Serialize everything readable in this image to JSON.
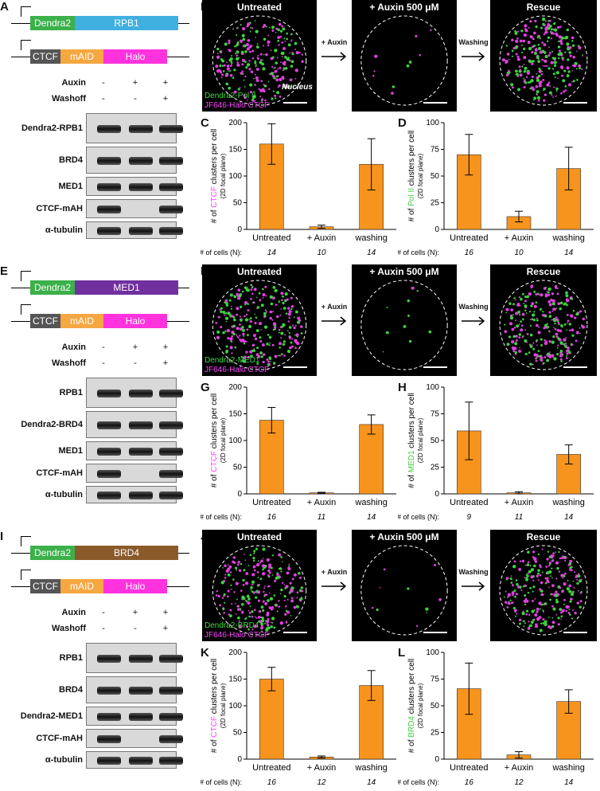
{
  "rows": [
    {
      "id": "row1",
      "labels": {
        "schematic": "A",
        "micro": "B",
        "chart1": "C",
        "chart2": "D"
      },
      "construct_top": [
        "Dendra2",
        "RPB1"
      ],
      "construct_top_colors": [
        "#3cb04a",
        "#3fb0e0"
      ],
      "construct_bottom": [
        "CTCF",
        "mAID",
        "Halo"
      ],
      "conditions": {
        "auxin_label": "Auxin",
        "washoff_label": "Washoff",
        "auxin": [
          "-",
          "+",
          "+"
        ],
        "washoff": [
          "-",
          "-",
          "+"
        ]
      },
      "blots": [
        "Dendra2-RPB1",
        "BRD4",
        "MED1",
        "CTCF-mAH",
        "α-tubulin"
      ],
      "micro_titles": [
        "Untreated",
        "+ Auxin 500 μM",
        "Rescue"
      ],
      "arrow_labels": [
        "+ Auxin",
        "Washing"
      ],
      "nucleus_label": "Nucleus",
      "legend_green": "Dendra2-Pol II",
      "legend_magenta": "JF646-Halo CTCF"
    },
    {
      "id": "row2",
      "labels": {
        "schematic": "E",
        "micro": "F",
        "chart1": "G",
        "chart2": "H"
      },
      "construct_top": [
        "Dendra2",
        "MED1"
      ],
      "construct_top_colors": [
        "#3cb04a",
        "#7030a0"
      ],
      "construct_bottom": [
        "CTCF",
        "mAID",
        "Halo"
      ],
      "conditions": {
        "auxin_label": "Auxin",
        "washoff_label": "Washoff",
        "auxin": [
          "-",
          "+",
          "+"
        ],
        "washoff": [
          "-",
          "-",
          "+"
        ]
      },
      "blots": [
        "RPB1",
        "Dendra2-BRD4",
        "MED1",
        "CTCF-mAH",
        "α-tubulin"
      ],
      "micro_titles": [
        "Untreated",
        "+ Auxin 500 μM",
        "Rescue"
      ],
      "arrow_labels": [
        "+ Auxin",
        "Washing"
      ],
      "nucleus_label": "",
      "legend_green": "Dendra2-MED1",
      "legend_magenta": "JF646-Halo CTCF"
    },
    {
      "id": "row3",
      "labels": {
        "schematic": "I",
        "micro": "J",
        "chart1": "K",
        "chart2": "L"
      },
      "construct_top": [
        "Dendra2",
        "BRD4"
      ],
      "construct_top_colors": [
        "#3cb04a",
        "#8b5a2b"
      ],
      "construct_bottom": [
        "CTCF",
        "mAID",
        "Halo"
      ],
      "conditions": {
        "auxin_label": "Auxin",
        "washoff_label": "Washoff",
        "auxin": [
          "-",
          "+",
          "+"
        ],
        "washoff": [
          "-",
          "-",
          "+"
        ]
      },
      "blots": [
        "RPB1",
        "BRD4",
        "Dendra2-MED1",
        "CTCF-mAH",
        "α-tubulin"
      ],
      "micro_titles": [
        "Untreated",
        "+ Auxin 500 μM",
        "Rescue"
      ],
      "arrow_labels": [
        "+ Auxin",
        "Washing"
      ],
      "nucleus_label": "",
      "legend_green": "Dendra2-BRD4",
      "legend_magenta": "JF646-Halo CTCF"
    }
  ],
  "colors": {
    "bar": "#f7941d",
    "ctcf": "#ff44ff",
    "green": "#44cc44",
    "ctcf_box": "#555555",
    "maid_box": "#f5a742",
    "halo_box": "#ff33dd"
  },
  "chart_data": [
    {
      "type": "bar",
      "panel": "C",
      "categories": [
        "Untreated",
        "+ Auxin",
        "washing"
      ],
      "values": [
        160,
        5,
        122
      ],
      "errors": [
        38,
        3,
        48
      ],
      "ylim": [
        0,
        200
      ],
      "yticks": [
        0,
        50,
        100,
        150,
        200
      ],
      "ylabel_prefix": "# of ",
      "ylabel_highlight": "CTCF",
      "ylabel_suffix": " clusters per cell",
      "ylabel_sub": "(2D focal plane)",
      "ncells_label": "# of cells (N):",
      "ncells": [
        "14",
        "10",
        "14"
      ]
    },
    {
      "type": "bar",
      "panel": "D",
      "categories": [
        "Untreated",
        "+ Auxin",
        "washing"
      ],
      "values": [
        70,
        12,
        57
      ],
      "errors": [
        19,
        5,
        20
      ],
      "ylim": [
        0,
        100
      ],
      "yticks": [
        0,
        25,
        50,
        75,
        100
      ],
      "ylabel_prefix": "# of ",
      "ylabel_highlight": "Pol II",
      "ylabel_suffix": " clusters per cell",
      "ylabel_sub": "(2D focal plane)",
      "ncells_label": "# of cells (N):",
      "ncells": [
        "16",
        "10",
        "14"
      ]
    },
    {
      "type": "bar",
      "panel": "G",
      "categories": [
        "Untreated",
        "+ Auxin",
        "washing"
      ],
      "values": [
        138,
        2,
        130
      ],
      "errors": [
        24,
        1,
        18
      ],
      "ylim": [
        0,
        200
      ],
      "yticks": [
        0,
        50,
        100,
        150,
        200
      ],
      "ylabel_prefix": "# of ",
      "ylabel_highlight": "CTCF",
      "ylabel_suffix": " clusters per cell",
      "ylabel_sub": "(2D focal plane)",
      "ncells_label": "# of cells (N):",
      "ncells": [
        "16",
        "11",
        "14"
      ]
    },
    {
      "type": "bar",
      "panel": "H",
      "categories": [
        "Untreated",
        "+ Auxin",
        "washing"
      ],
      "values": [
        59,
        1,
        37
      ],
      "errors": [
        27,
        1,
        9
      ],
      "ylim": [
        0,
        100
      ],
      "yticks": [
        0,
        25,
        50,
        75,
        100
      ],
      "ylabel_prefix": "# of ",
      "ylabel_highlight": "MED1",
      "ylabel_suffix": " clusters per cell",
      "ylabel_sub": "(2D focal plane)",
      "ncells_label": "# of cells (N):",
      "ncells": [
        "9",
        "11",
        "14"
      ]
    },
    {
      "type": "bar",
      "panel": "K",
      "categories": [
        "Untreated",
        "+ Auxin",
        "washing"
      ],
      "values": [
        150,
        4,
        138
      ],
      "errors": [
        22,
        2,
        28
      ],
      "ylim": [
        0,
        200
      ],
      "yticks": [
        0,
        50,
        100,
        150,
        200
      ],
      "ylabel_prefix": "# of ",
      "ylabel_highlight": "CTCF",
      "ylabel_suffix": " clusters per cell",
      "ylabel_sub": "(2D focal plane)",
      "ncells_label": "# of cells (N):",
      "ncells": [
        "16",
        "12",
        "14"
      ]
    },
    {
      "type": "bar",
      "panel": "L",
      "categories": [
        "Untreated",
        "+ Auxin",
        "washing"
      ],
      "values": [
        66,
        4,
        54
      ],
      "errors": [
        24,
        3,
        11
      ],
      "ylim": [
        0,
        100
      ],
      "yticks": [
        0,
        25,
        50,
        75,
        100
      ],
      "ylabel_prefix": "# of ",
      "ylabel_highlight": "BRD4",
      "ylabel_suffix": " clusters per cell",
      "ylabel_sub": "(2D focal plane)",
      "ncells_label": "# of cells (N):",
      "ncells": [
        "16",
        "12",
        "14"
      ]
    }
  ]
}
